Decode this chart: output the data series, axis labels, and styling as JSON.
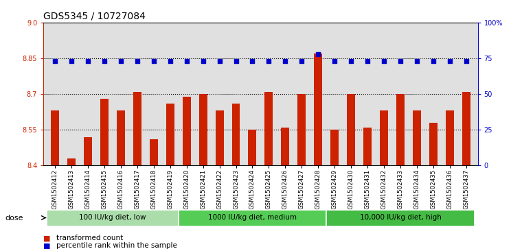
{
  "title": "GDS5345 / 10727084",
  "categories": [
    "GSM1502412",
    "GSM1502413",
    "GSM1502414",
    "GSM1502415",
    "GSM1502416",
    "GSM1502417",
    "GSM1502418",
    "GSM1502419",
    "GSM1502420",
    "GSM1502421",
    "GSM1502422",
    "GSM1502423",
    "GSM1502424",
    "GSM1502425",
    "GSM1502426",
    "GSM1502427",
    "GSM1502428",
    "GSM1502429",
    "GSM1502430",
    "GSM1502431",
    "GSM1502432",
    "GSM1502433",
    "GSM1502434",
    "GSM1502435",
    "GSM1502436",
    "GSM1502437"
  ],
  "bar_values": [
    8.63,
    8.43,
    8.52,
    8.68,
    8.63,
    8.71,
    8.51,
    8.66,
    8.69,
    8.7,
    8.63,
    8.66,
    8.55,
    8.71,
    8.56,
    8.7,
    8.87,
    8.55,
    8.7,
    8.56,
    8.63,
    8.7,
    8.63,
    8.58,
    8.63,
    8.71
  ],
  "percentile_values": [
    73,
    73,
    73,
    73,
    73,
    73,
    73,
    73,
    73,
    73,
    73,
    73,
    73,
    73,
    73,
    73,
    78,
    73,
    73,
    73,
    73,
    73,
    73,
    73,
    73,
    73
  ],
  "bar_color": "#cc2200",
  "dot_color": "#0000cc",
  "ylim_left": [
    8.4,
    9.0
  ],
  "ylim_right": [
    0,
    100
  ],
  "yticks_left": [
    8.4,
    8.55,
    8.7,
    8.85,
    9.0
  ],
  "yticks_right": [
    0,
    25,
    50,
    75,
    100
  ],
  "ytick_labels_right": [
    "0",
    "25",
    "50",
    "75",
    "100%"
  ],
  "hlines": [
    8.55,
    8.7,
    8.85
  ],
  "groups": [
    {
      "label": "100 IU/kg diet, low",
      "start": 0,
      "end": 8
    },
    {
      "label": "1000 IU/kg diet, medium",
      "start": 8,
      "end": 17
    },
    {
      "label": "10,000 IU/kg diet, high",
      "start": 17,
      "end": 26
    }
  ],
  "group_fill_colors": [
    "#aaddaa",
    "#55cc55",
    "#44bb44"
  ],
  "legend_items": [
    {
      "label": "transformed count",
      "color": "#cc2200"
    },
    {
      "label": "percentile rank within the sample",
      "color": "#0000cc"
    }
  ],
  "dose_label": "dose",
  "background_color": "#e0e0e0",
  "plot_bg": "#ffffff",
  "title_fontsize": 10,
  "tick_fontsize": 7,
  "bar_tick_fontsize": 6.2
}
